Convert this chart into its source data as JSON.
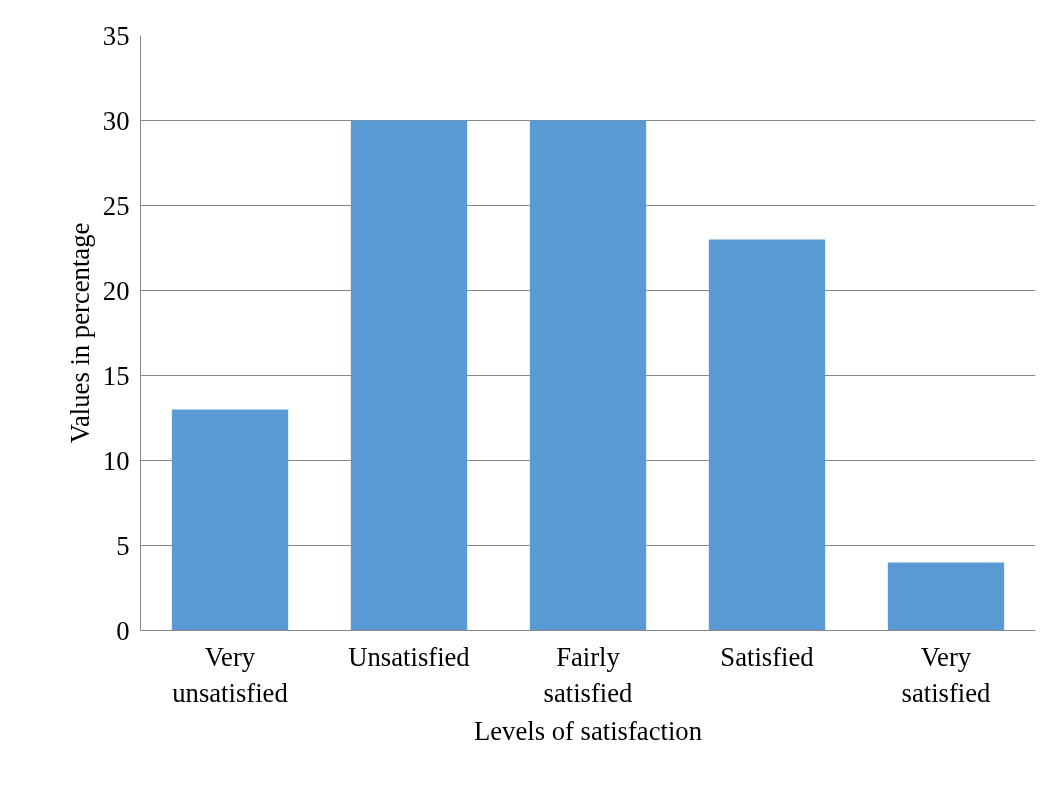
{
  "chart_data": {
    "type": "bar",
    "xlabel": "Levels of satisfaction",
    "ylabel": "Values in percentage",
    "categories": [
      "Very unsatisfied",
      "Unsatisfied",
      "Fairly satisfied",
      "Satisfied",
      "Very satisfied"
    ],
    "values": [
      13,
      30,
      30,
      23,
      4
    ],
    "color": "#5b9bd5",
    "ylim": [
      0,
      35
    ],
    "yticks": [
      0,
      5,
      10,
      15,
      20,
      25,
      30,
      35
    ],
    "grid": "y"
  }
}
